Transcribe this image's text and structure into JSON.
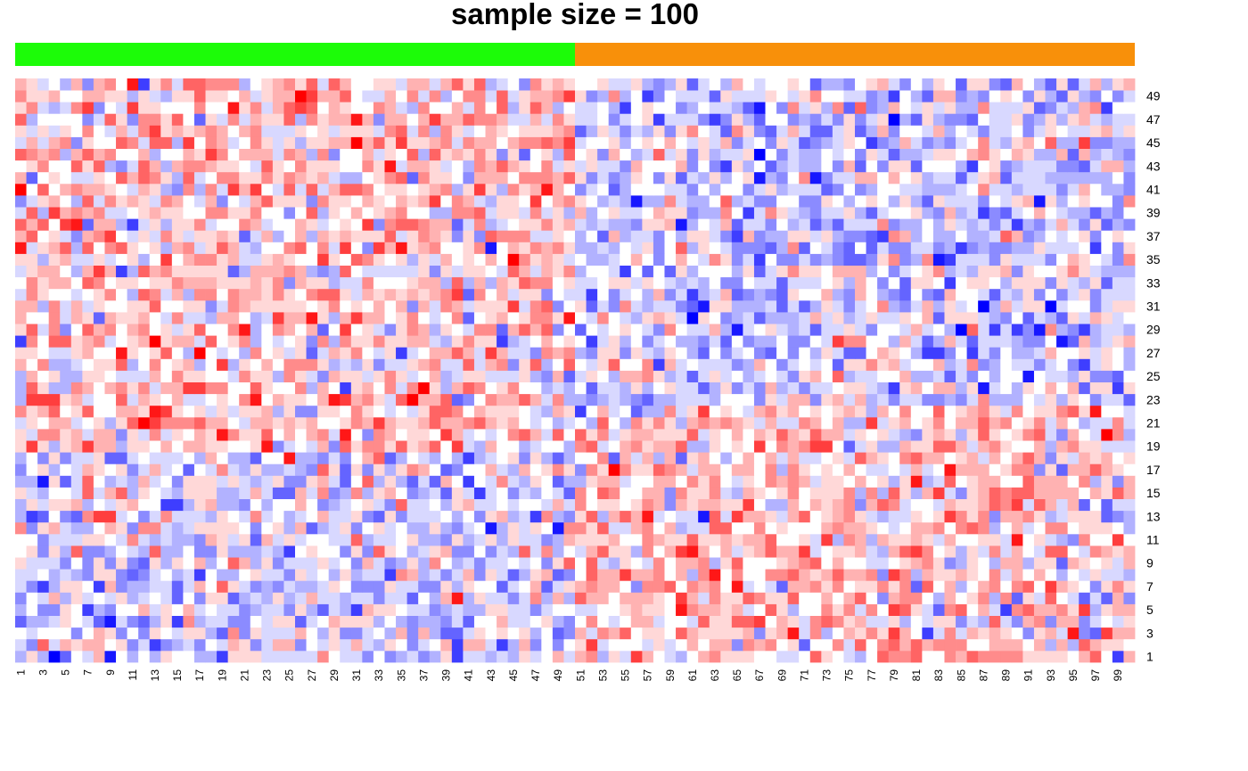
{
  "chart_data": {
    "type": "heatmap",
    "title": "sample size = 100",
    "xlabel": "",
    "ylabel": "",
    "n_columns": 100,
    "n_rows": 50,
    "x_tick_labels": [
      "1",
      "3",
      "5",
      "7",
      "9",
      "11",
      "13",
      "15",
      "17",
      "19",
      "21",
      "23",
      "25",
      "27",
      "29",
      "31",
      "33",
      "35",
      "37",
      "39",
      "41",
      "43",
      "45",
      "47",
      "49",
      "51",
      "53",
      "55",
      "57",
      "59",
      "61",
      "63",
      "65",
      "67",
      "69",
      "71",
      "73",
      "75",
      "77",
      "79",
      "81",
      "83",
      "85",
      "87",
      "89",
      "91",
      "93",
      "95",
      "97",
      "99"
    ],
    "y_tick_labels": [
      "1",
      "3",
      "5",
      "7",
      "9",
      "11",
      "13",
      "15",
      "17",
      "19",
      "21",
      "23",
      "25",
      "27",
      "29",
      "31",
      "33",
      "35",
      "37",
      "39",
      "41",
      "43",
      "45",
      "47",
      "49"
    ],
    "column_annotation": [
      {
        "columns": [
          1,
          50
        ],
        "color": "#1CFC08"
      },
      {
        "columns": [
          51,
          100
        ],
        "color": "#F8900A"
      }
    ],
    "color_scale": {
      "low": "#0000FF",
      "mid": "#FFFFFF",
      "high": "#FF0000"
    },
    "value_range": [
      -3,
      3
    ],
    "values_note": "cell values are pseudo-generated to mimic the visible noise pattern",
    "seed": 100
  }
}
